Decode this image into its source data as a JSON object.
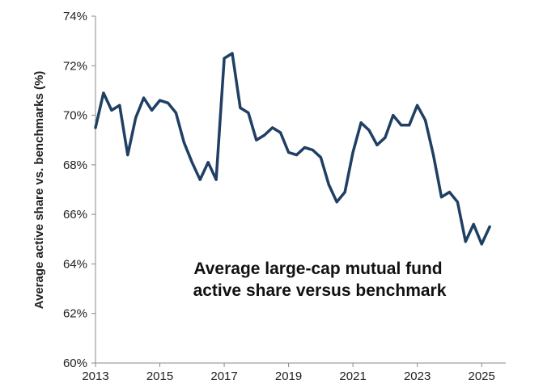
{
  "chart_data": {
    "type": "line",
    "title": "",
    "xlabel": "",
    "ylabel": "Average active share vs. benchmarks (%)",
    "annotation_lines": [
      "Average large-cap mutual fund",
      "active share versus benchmark"
    ],
    "ylim": [
      60,
      74
    ],
    "y_ticks": [
      60,
      62,
      64,
      66,
      68,
      70,
      72,
      74
    ],
    "y_tick_labels": [
      "60%",
      "62%",
      "64%",
      "66%",
      "68%",
      "70%",
      "72%",
      "74%"
    ],
    "xlim": [
      2013,
      2025.75
    ],
    "x_ticks": [
      2013,
      2015,
      2017,
      2019,
      2021,
      2023,
      2025
    ],
    "x_tick_labels": [
      "2013",
      "2015",
      "2017",
      "2019",
      "2021",
      "2023",
      "2025"
    ],
    "grid": false,
    "legend": "none",
    "series": [
      {
        "color": "#1F3F63",
        "x": [
          2013.0,
          2013.25,
          2013.5,
          2013.75,
          2014.0,
          2014.25,
          2014.5,
          2014.75,
          2015.0,
          2015.25,
          2015.5,
          2015.75,
          2016.0,
          2016.25,
          2016.5,
          2016.75,
          2017.0,
          2017.25,
          2017.5,
          2017.75,
          2018.0,
          2018.25,
          2018.5,
          2018.75,
          2019.0,
          2019.25,
          2019.5,
          2019.75,
          2020.0,
          2020.25,
          2020.5,
          2020.75,
          2021.0,
          2021.25,
          2021.5,
          2021.75,
          2022.0,
          2022.25,
          2022.5,
          2022.75,
          2023.0,
          2023.25,
          2023.5,
          2023.75,
          2024.0,
          2024.25,
          2024.5,
          2024.75,
          2025.0,
          2025.25
        ],
        "values": [
          69.5,
          70.9,
          70.2,
          70.4,
          68.4,
          69.9,
          70.7,
          70.2,
          70.6,
          70.5,
          70.1,
          68.9,
          68.1,
          67.4,
          68.1,
          67.4,
          72.3,
          72.5,
          70.3,
          70.1,
          69.0,
          69.2,
          69.5,
          69.3,
          68.5,
          68.4,
          68.7,
          68.6,
          68.3,
          67.2,
          66.5,
          66.9,
          68.5,
          69.7,
          69.4,
          68.8,
          69.1,
          70.0,
          69.6,
          69.6,
          70.4,
          69.8,
          68.4,
          66.7,
          66.9,
          66.5,
          64.9,
          65.6,
          64.8,
          65.5
        ]
      }
    ]
  }
}
